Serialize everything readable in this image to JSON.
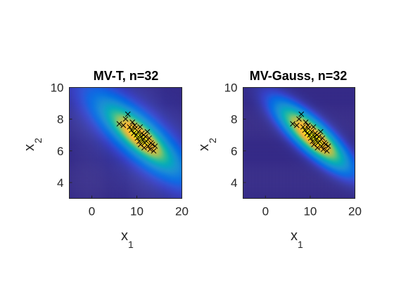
{
  "chart_data": [
    {
      "type": "heatmap",
      "title": "MV-T, n=32",
      "xlabel": "x",
      "xlabel_sub": "1",
      "ylabel": "x",
      "ylabel_sub": "2",
      "xlim": [
        -5,
        20
      ],
      "ylim": [
        3,
        10
      ],
      "xticks": [
        0,
        10,
        20
      ],
      "yticks": [
        4,
        6,
        8,
        10
      ],
      "density": {
        "mean": [
          10.5,
          6.9
        ],
        "sd": [
          5.6,
          1.45
        ],
        "rho": -0.8,
        "tails": "heavy"
      },
      "points": [
        [
          6.1,
          7.7
        ],
        [
          7.0,
          7.6
        ],
        [
          7.5,
          8.0
        ],
        [
          8.0,
          8.3
        ],
        [
          8.4,
          7.5
        ],
        [
          8.8,
          7.3
        ],
        [
          9.0,
          7.8
        ],
        [
          9.3,
          7.1
        ],
        [
          9.6,
          7.4
        ],
        [
          9.9,
          7.0
        ],
        [
          10.1,
          6.8
        ],
        [
          10.3,
          7.2
        ],
        [
          10.5,
          6.6
        ],
        [
          10.7,
          7.5
        ],
        [
          10.9,
          6.9
        ],
        [
          11.1,
          7.1
        ],
        [
          11.3,
          6.7
        ],
        [
          11.5,
          7.0
        ],
        [
          11.7,
          6.5
        ],
        [
          11.9,
          6.9
        ],
        [
          12.1,
          6.6
        ],
        [
          12.3,
          7.2
        ],
        [
          12.5,
          6.3
        ],
        [
          12.7,
          6.8
        ],
        [
          12.9,
          6.1
        ],
        [
          13.1,
          6.5
        ],
        [
          13.4,
          6.4
        ],
        [
          13.7,
          6.0
        ],
        [
          14.0,
          6.3
        ],
        [
          10.8,
          6.4
        ],
        [
          11.6,
          6.2
        ],
        [
          9.5,
          7.6
        ]
      ]
    },
    {
      "type": "heatmap",
      "title": "MV-Gauss, n=32",
      "xlabel": "x",
      "xlabel_sub": "1",
      "ylabel": "x",
      "ylabel_sub": "2",
      "xlim": [
        -5,
        20
      ],
      "ylim": [
        3,
        10
      ],
      "xticks": [
        0,
        10,
        20
      ],
      "yticks": [
        4,
        6,
        8,
        10
      ],
      "density": {
        "mean": [
          10.5,
          6.9
        ],
        "sd": [
          5.0,
          1.3
        ],
        "rho": -0.82,
        "tails": "gaussian"
      },
      "points": [
        [
          6.1,
          7.7
        ],
        [
          7.0,
          7.6
        ],
        [
          7.5,
          8.0
        ],
        [
          8.0,
          8.3
        ],
        [
          8.4,
          7.5
        ],
        [
          8.8,
          7.3
        ],
        [
          9.0,
          7.8
        ],
        [
          9.3,
          7.1
        ],
        [
          9.6,
          7.4
        ],
        [
          9.9,
          7.0
        ],
        [
          10.1,
          6.8
        ],
        [
          10.3,
          7.2
        ],
        [
          10.5,
          6.6
        ],
        [
          10.7,
          7.5
        ],
        [
          10.9,
          6.9
        ],
        [
          11.1,
          7.1
        ],
        [
          11.3,
          6.7
        ],
        [
          11.5,
          7.0
        ],
        [
          11.7,
          6.5
        ],
        [
          11.9,
          6.9
        ],
        [
          12.1,
          6.6
        ],
        [
          12.3,
          7.2
        ],
        [
          12.5,
          6.3
        ],
        [
          12.7,
          6.8
        ],
        [
          12.9,
          6.1
        ],
        [
          13.1,
          6.5
        ],
        [
          13.4,
          6.4
        ],
        [
          13.7,
          6.0
        ],
        [
          14.0,
          6.3
        ],
        [
          10.8,
          6.4
        ],
        [
          11.6,
          6.2
        ],
        [
          9.5,
          7.6
        ]
      ]
    }
  ]
}
